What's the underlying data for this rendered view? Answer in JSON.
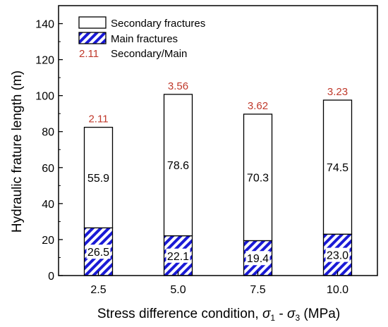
{
  "chart_data": {
    "type": "bar",
    "stacked": true,
    "categories": [
      "2.5",
      "5.0",
      "7.5",
      "10.0"
    ],
    "series": [
      {
        "name": "Main fractures",
        "values": [
          26.5,
          22.1,
          19.4,
          23.0
        ],
        "pattern": "blue-hatch"
      },
      {
        "name": "Secondary fractures",
        "values": [
          55.9,
          78.6,
          70.3,
          74.5
        ],
        "pattern": "white"
      }
    ],
    "ratio": {
      "name": "Secondary/Main",
      "legend_value": "2.11",
      "values": [
        "2.11",
        "3.56",
        "3.62",
        "3.23"
      ]
    },
    "xlabel": "Stress difference condition, ",
    "xlabel_sigma1": "σ",
    "xlabel_sub1": "1",
    "xlabel_dash": " - ",
    "xlabel_sigma3": "σ",
    "xlabel_sub3": "3",
    "xlabel_unit": " (MPa)",
    "ylabel": "Hydraulic frature length (m)",
    "ylim": [
      0,
      150
    ],
    "yticks": [
      "0",
      "20",
      "40",
      "60",
      "80",
      "100",
      "120",
      "140"
    ],
    "legend_position": "top-left",
    "colors": {
      "hatch": "#1a1ad6",
      "ratio_text": "#c0392b",
      "axis": "#000000"
    }
  }
}
